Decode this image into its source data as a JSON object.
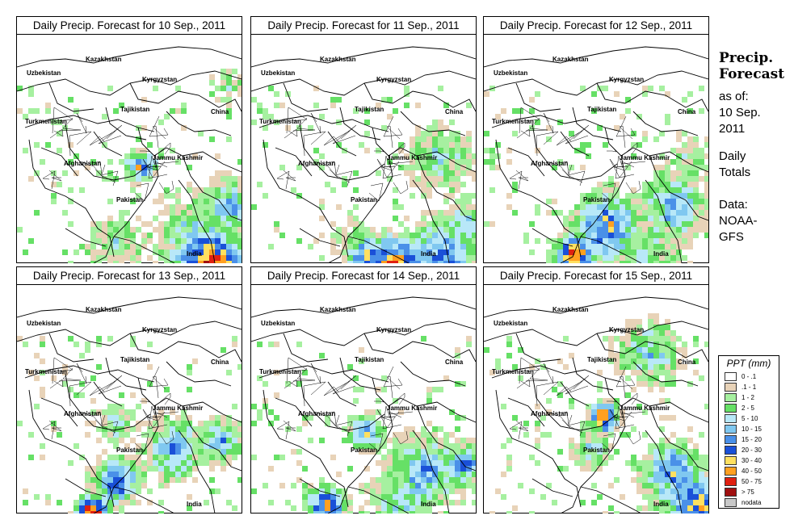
{
  "panels": [
    {
      "title": "Daily Precip. Forecast for  10 Sep., 2011"
    },
    {
      "title": "Daily Precip. Forecast for  11 Sep., 2011"
    },
    {
      "title": "Daily Precip. Forecast for  12 Sep., 2011"
    },
    {
      "title": "Daily Precip. Forecast for  13 Sep., 2011"
    },
    {
      "title": "Daily Precip. Forecast for  14 Sep., 2011"
    },
    {
      "title": "Daily Precip. Forecast for  15 Sep., 2011"
    }
  ],
  "map_labels": {
    "uzbekistan": "Uzbekistan",
    "kazakhstan": "Kazakhstan",
    "kyrgyzstan": "Kyrgyzstan",
    "tajikistan": "Tajikistan",
    "turkmenistan": "Turkmenistan",
    "china": "China",
    "afghanistan": "Afghanistan",
    "jammu_kashmir": "Jammu Kashmir",
    "pakistan": "Pakistan",
    "india": "India"
  },
  "side": {
    "title_line1": "Precip.",
    "title_line2": "Forecast",
    "asof_line1": "as of:",
    "asof_line2": "10 Sep.",
    "asof_line3": "2011",
    "totals_line1": "Daily",
    "totals_line2": "Totals",
    "data_line1": "Data:",
    "data_line2": "NOAA-",
    "data_line3": "GFS"
  },
  "legend": {
    "title": "PPT (mm)",
    "items": [
      {
        "label": "0 - .1",
        "color": "#ffffff"
      },
      {
        "label": ".1 - 1",
        "color": "#e8d3b8"
      },
      {
        "label": "1 - 2",
        "color": "#a6f0a0"
      },
      {
        "label": "2 - 5",
        "color": "#66e066"
      },
      {
        "label": "5 - 10",
        "color": "#b8e8f8"
      },
      {
        "label": "10 - 15",
        "color": "#80c8f0"
      },
      {
        "label": "15 - 20",
        "color": "#4a90e8"
      },
      {
        "label": "20 - 30",
        "color": "#1a50d8"
      },
      {
        "label": "30 - 40",
        "color": "#ffe060"
      },
      {
        "label": "40 - 50",
        "color": "#ffa020"
      },
      {
        "label": "50 - 75",
        "color": "#e02010"
      },
      {
        "label": "> 75",
        "color": "#a01010"
      },
      {
        "label": "nodata",
        "color": "#c8c8c8"
      }
    ]
  }
}
